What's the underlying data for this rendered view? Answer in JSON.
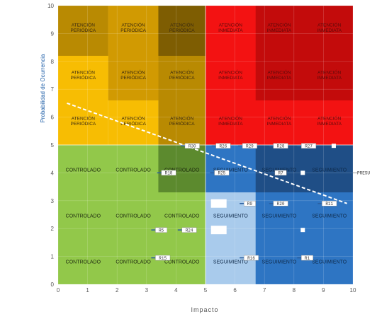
{
  "chart_data": {
    "type": "heatmap",
    "xlabel": "Impacto",
    "ylabel": "Probabilidad de Ocurrencia",
    "xlim": [
      0,
      10
    ],
    "ylim": [
      0,
      10
    ],
    "x_ticks": [
      "0",
      "1",
      "2",
      "3",
      "4",
      "5",
      "6",
      "7",
      "8",
      "9",
      "10"
    ],
    "y_ticks": [
      "0",
      "1",
      "2",
      "3",
      "4",
      "5",
      "6",
      "7",
      "8",
      "9",
      "10"
    ],
    "zone_colors": {
      "atencion_periodica_light": "#f7bd03",
      "atencion_periodica_mid": "#d19a02",
      "atencion_periodica_dark": "#b98a02",
      "atencion_periodica_darkest": "#7e5d02",
      "atencion_inmediata": "#f31212",
      "atencion_inmediata_dark": "#c30b0b",
      "controlado": "#92c84a",
      "controlado_dark": "#5c8a2e",
      "seguimiento": "#2e75c3",
      "seguimiento_light": "#a9cbec",
      "seguimiento_dark": "#1f4e86"
    },
    "zones": [
      {
        "x0": 0,
        "x1": 1.7,
        "y0": 5,
        "y1": 10,
        "color": "atencion_periodica_light"
      },
      {
        "x0": 1.7,
        "x1": 3.4,
        "y0": 5,
        "y1": 10,
        "color": "atencion_periodica_light"
      },
      {
        "x0": 0,
        "x1": 1.7,
        "y0": 8.2,
        "y1": 10,
        "color": "atencion_periodica_dark"
      },
      {
        "x0": 1.7,
        "x1": 3.4,
        "y0": 6.6,
        "y1": 10,
        "color": "atencion_periodica_mid"
      },
      {
        "x0": 3.4,
        "x1": 5,
        "y0": 5,
        "y1": 10,
        "color": "atencion_periodica_dark"
      },
      {
        "x0": 3.4,
        "x1": 5,
        "y0": 8.2,
        "y1": 10,
        "color": "atencion_periodica_darkest"
      },
      {
        "x0": 5,
        "x1": 10,
        "y0": 5,
        "y1": 10,
        "color": "atencion_inmediata"
      },
      {
        "x0": 6.7,
        "x1": 10,
        "y0": 6.6,
        "y1": 10,
        "color": "atencion_inmediata_dark"
      },
      {
        "x0": 0,
        "x1": 5,
        "y0": 0,
        "y1": 5,
        "color": "controlado"
      },
      {
        "x0": 3.4,
        "x1": 5,
        "y0": 3.3,
        "y1": 5,
        "color": "controlado_dark"
      },
      {
        "x0": 5,
        "x1": 10,
        "y0": 0,
        "y1": 5,
        "color": "seguimiento"
      },
      {
        "x0": 5,
        "x1": 6.7,
        "y0": 0,
        "y1": 3.3,
        "color": "seguimiento_light"
      },
      {
        "x0": 6.7,
        "x1": 10,
        "y0": 3.3,
        "y1": 5,
        "color": "seguimiento_dark"
      }
    ],
    "cells": [
      {
        "x": 0.85,
        "y": 9.2,
        "label": "ATENCIÓN PERIÓDICA"
      },
      {
        "x": 2.55,
        "y": 9.2,
        "label": "ATENCIÓN PERIÓDICA"
      },
      {
        "x": 4.2,
        "y": 9.2,
        "label": "ATENCIÓN PERIÓDICA"
      },
      {
        "x": 5.85,
        "y": 9.2,
        "label": "ATENCIÓN INMEDIATA"
      },
      {
        "x": 7.5,
        "y": 9.2,
        "label": "ATENCIÓN INMEDIATA"
      },
      {
        "x": 9.2,
        "y": 9.2,
        "label": "ATENCIÓN INMEDIATA"
      },
      {
        "x": 0.85,
        "y": 7.5,
        "label": "ATENCIÓN PERIÓDICA"
      },
      {
        "x": 2.55,
        "y": 7.5,
        "label": "ATENCIÓN PERIÓDICA"
      },
      {
        "x": 4.2,
        "y": 7.5,
        "label": "ATENCIÓN PERIÓDICA"
      },
      {
        "x": 5.85,
        "y": 7.5,
        "label": "ATENCIÓN INMEDIATA"
      },
      {
        "x": 7.5,
        "y": 7.5,
        "label": "ATENCIÓN INMEDIATA"
      },
      {
        "x": 9.2,
        "y": 7.5,
        "label": "ATENCIÓN INMEDIATA"
      },
      {
        "x": 0.85,
        "y": 5.85,
        "label": "ATENCIÓN PERIÓDICA"
      },
      {
        "x": 2.55,
        "y": 5.85,
        "label": "ATENCIÓN PERIÓDICA"
      },
      {
        "x": 4.2,
        "y": 5.85,
        "label": "ATENCIÓN PERIÓDICA"
      },
      {
        "x": 5.85,
        "y": 5.85,
        "label": "ATENCIÓN INMEDIATA"
      },
      {
        "x": 7.5,
        "y": 5.85,
        "label": "ATENCIÓN INMEDIATA"
      },
      {
        "x": 9.2,
        "y": 5.85,
        "label": "ATENCIÓN INMEDIATA"
      },
      {
        "x": 0.85,
        "y": 4.05,
        "label": "CONTROLADO"
      },
      {
        "x": 2.55,
        "y": 4.05,
        "label": "CONTROLADO"
      },
      {
        "x": 4.2,
        "y": 4.05,
        "label": "CONTROLADO"
      },
      {
        "x": 5.85,
        "y": 4.05,
        "label": "SEGUIMIENTO"
      },
      {
        "x": 7.5,
        "y": 4.05,
        "label": "SEGUIMIENTO"
      },
      {
        "x": 9.2,
        "y": 4.05,
        "label": "SEGUIMIENTO"
      },
      {
        "x": 0.85,
        "y": 2.4,
        "label": "CONTROLADO"
      },
      {
        "x": 2.55,
        "y": 2.4,
        "label": "CONTROLADO"
      },
      {
        "x": 4.2,
        "y": 2.4,
        "label": "CONTROLADO"
      },
      {
        "x": 5.85,
        "y": 2.4,
        "label": "SEGUIMIENTO"
      },
      {
        "x": 7.5,
        "y": 2.4,
        "label": "SEGUIMIENTO"
      },
      {
        "x": 9.2,
        "y": 2.4,
        "label": "SEGUIMIENTO"
      },
      {
        "x": 0.85,
        "y": 0.75,
        "label": "CONTROLADO"
      },
      {
        "x": 2.55,
        "y": 0.75,
        "label": "CONTROLADO"
      },
      {
        "x": 4.2,
        "y": 0.75,
        "label": "CONTROLADO"
      },
      {
        "x": 5.85,
        "y": 0.75,
        "label": "SEGUIMIENTO"
      },
      {
        "x": 7.5,
        "y": 0.75,
        "label": "SEGUIMIENTO"
      },
      {
        "x": 9.2,
        "y": 0.75,
        "label": "SEGUIMIENTO"
      }
    ],
    "threshold_line": {
      "x0": 0.3,
      "y0": 6.5,
      "x1": 9.8,
      "y1": 2.9
    },
    "risks": [
      {
        "label": "R30",
        "x": 4.55,
        "y": 4.97
      },
      {
        "label": "R26",
        "x": 5.6,
        "y": 4.97
      },
      {
        "label": "R29",
        "x": 6.5,
        "y": 4.97
      },
      {
        "label": "R28",
        "x": 7.55,
        "y": 4.97
      },
      {
        "label": "R27",
        "x": 8.5,
        "y": 4.97
      },
      {
        "label": "R18",
        "x": 3.75,
        "y": 4.0
      },
      {
        "label": "R25",
        "x": 5.55,
        "y": 4.0
      },
      {
        "label": "R7",
        "x": 7.55,
        "y": 4.0
      },
      {
        "label": "R9",
        "x": 6.5,
        "y": 2.9
      },
      {
        "label": "R20",
        "x": 7.55,
        "y": 2.9
      },
      {
        "label": "R11",
        "x": 9.2,
        "y": 2.9
      },
      {
        "label": "R5",
        "x": 3.5,
        "y": 1.95
      },
      {
        "label": "R24",
        "x": 4.45,
        "y": 1.95
      },
      {
        "label": "R15",
        "x": 3.55,
        "y": 0.95
      },
      {
        "label": "R16",
        "x": 6.55,
        "y": 0.95
      },
      {
        "label": "R1",
        "x": 8.45,
        "y": 0.95
      }
    ],
    "blank_markers": [
      {
        "x": 9.35,
        "y": 4.97
      },
      {
        "x": 5.45,
        "y": 2.9
      },
      {
        "x": 5.45,
        "y": 1.95
      },
      {
        "x": 8.3,
        "y": 4.0
      },
      {
        "x": 8.3,
        "y": 1.95
      }
    ],
    "side_label": {
      "text": "PRESU",
      "y": 4.0
    }
  }
}
